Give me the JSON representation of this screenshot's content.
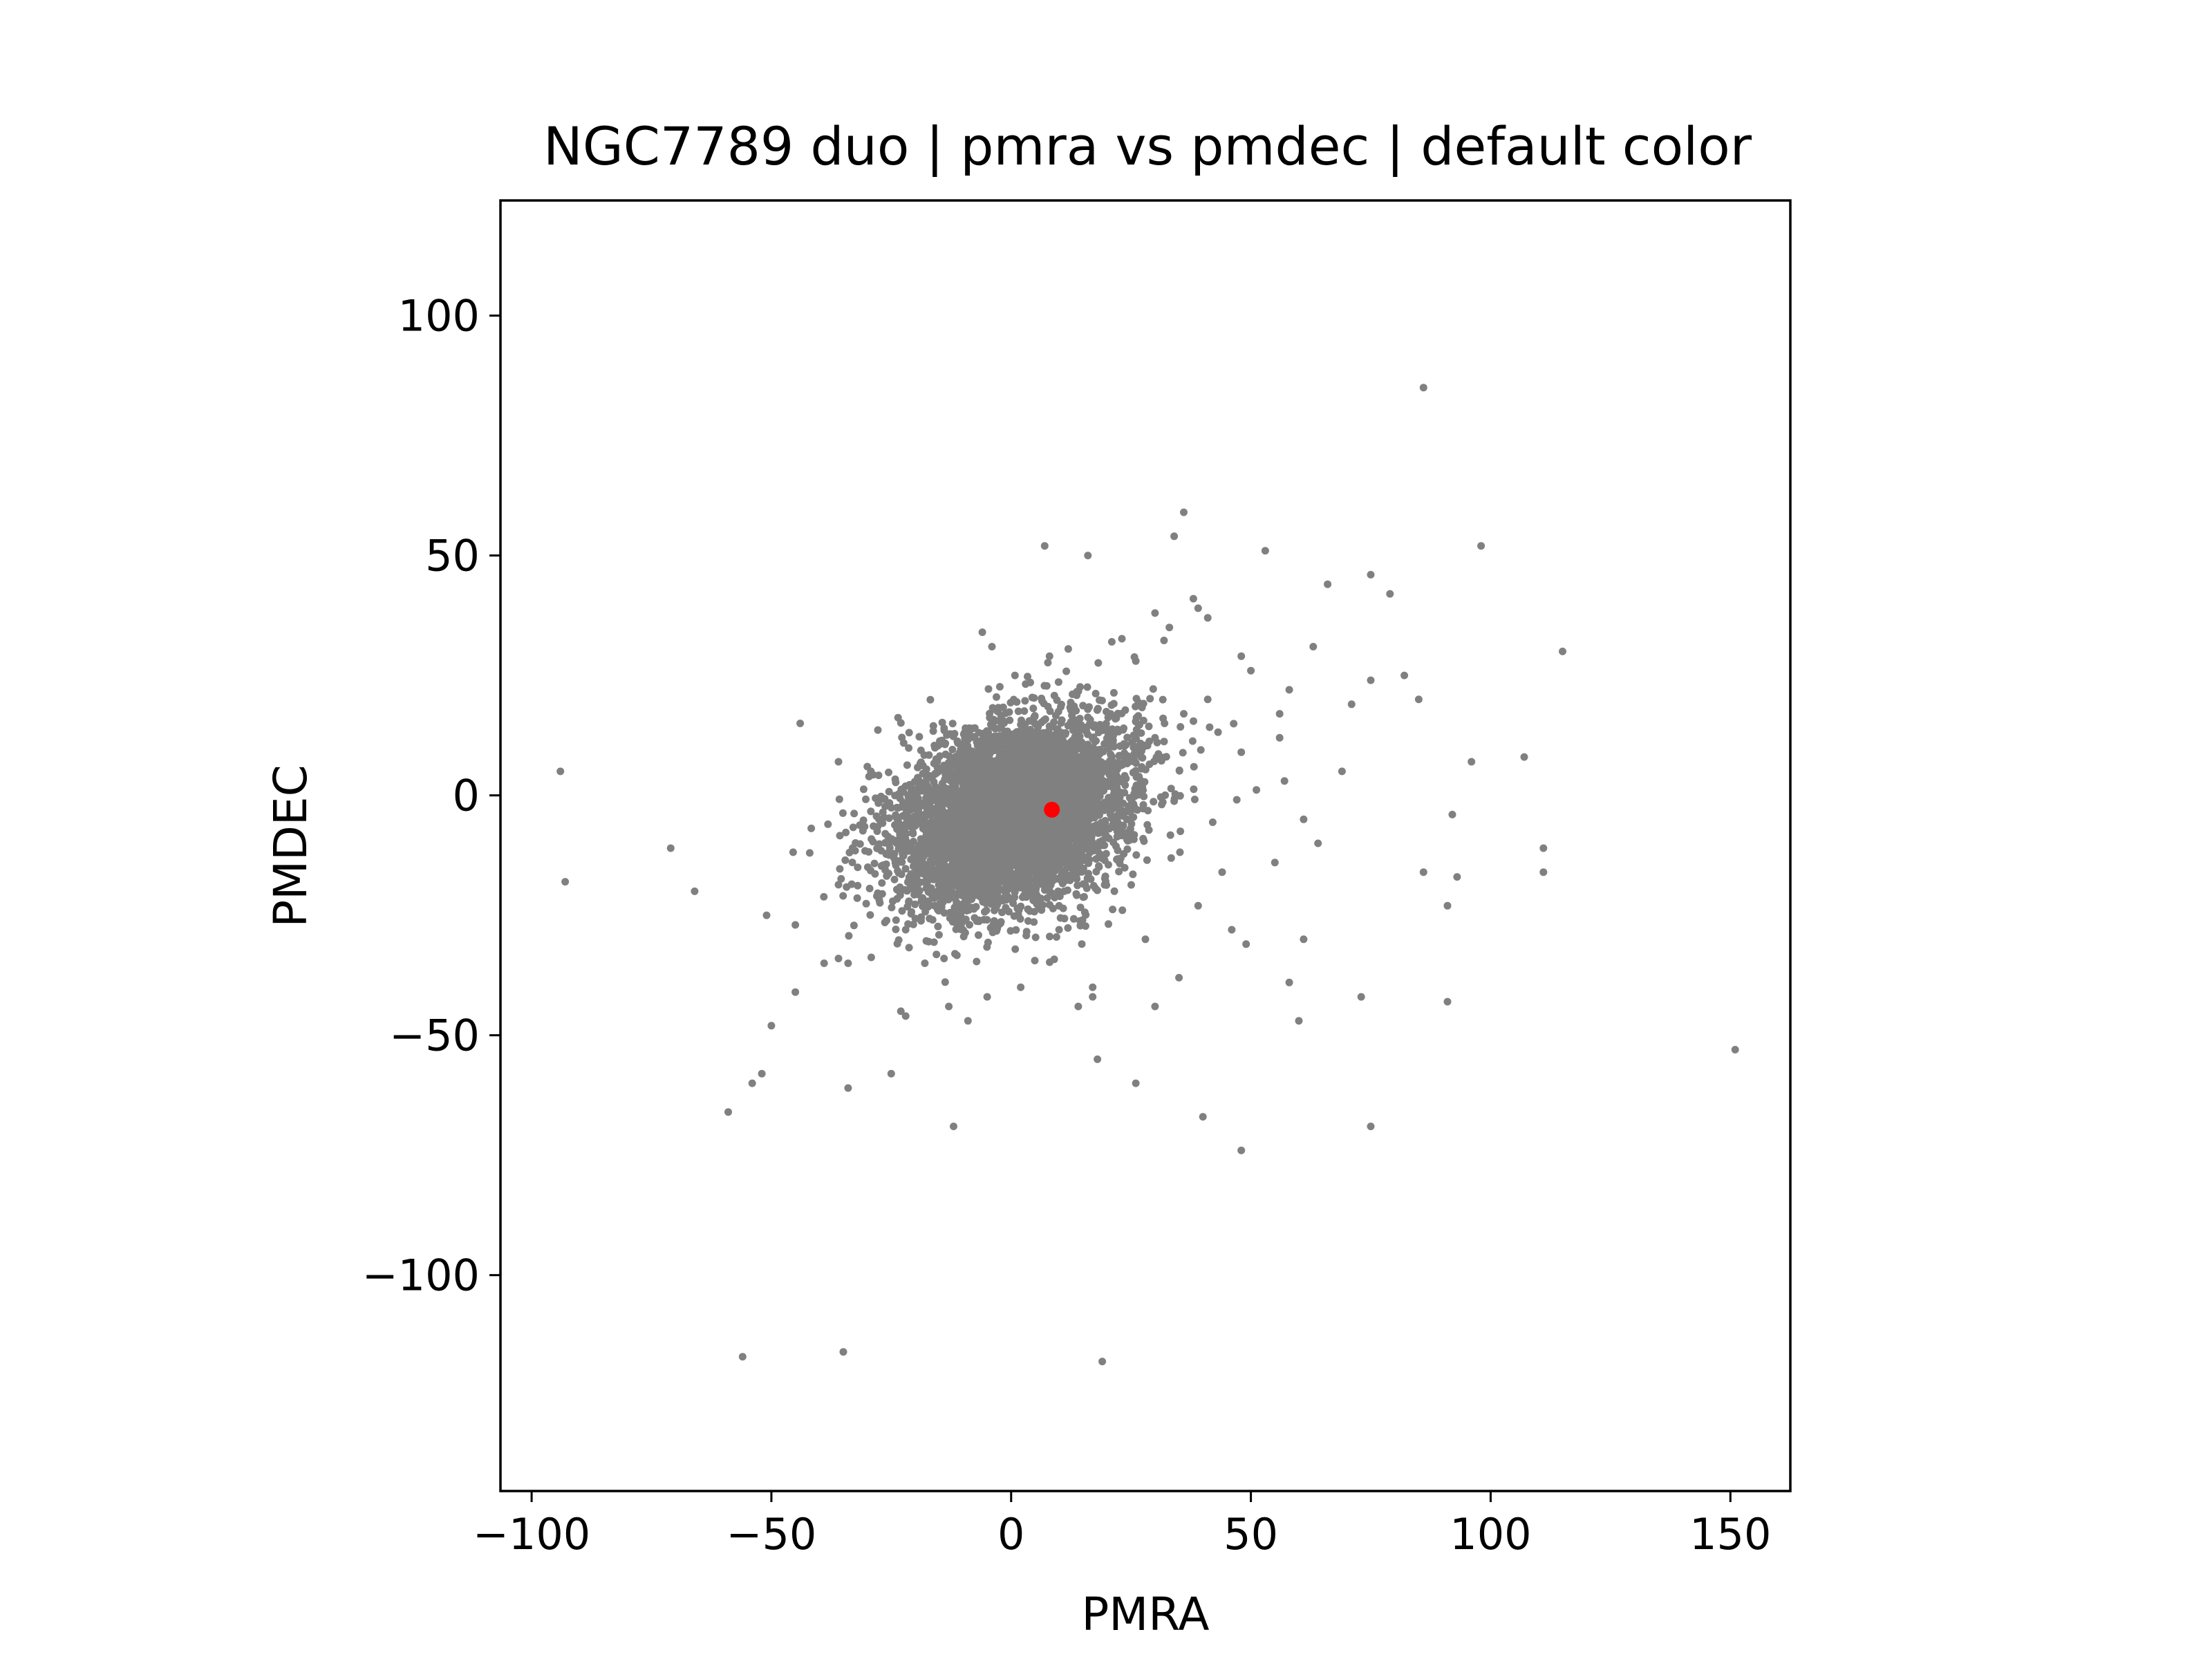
{
  "chart_data": {
    "type": "scatter",
    "title": "NGC7789 duo | pmra vs pmdec | default color",
    "xlabel": "PMRA",
    "ylabel": "PMDEC",
    "xlim": [
      -106.5,
      162.5
    ],
    "ylim": [
      -145,
      124
    ],
    "xticks": [
      -100,
      -50,
      0,
      50,
      100,
      150
    ],
    "yticks": [
      -100,
      -50,
      0,
      50,
      100
    ],
    "xtick_labels": [
      "−100",
      "−50",
      "0",
      "50",
      "100",
      "150"
    ],
    "ytick_labels": [
      "−100",
      "−50",
      "0",
      "50",
      "100"
    ],
    "grid": false,
    "legend": "none",
    "series": [
      {
        "color": "#808080",
        "marker_size": "small",
        "core": {
          "center_x": 0.8,
          "center_y": -4,
          "spread_x": 12.5,
          "spread_y": 9.5,
          "count": 5000
        },
        "points_x": [
          -94,
          -93,
          -71,
          -66,
          -59,
          -56,
          -54,
          -52,
          -50,
          -51,
          -45,
          -44,
          -45,
          -39,
          -35,
          -34,
          -34,
          -36,
          -32,
          -30,
          -25,
          -23,
          -22,
          -13,
          -12,
          -6,
          -4,
          8,
          7,
          16,
          19,
          18,
          26,
          30,
          30,
          33,
          36,
          34,
          38,
          39,
          41,
          40,
          48,
          49,
          53,
          60,
          61,
          66,
          73,
          75,
          75,
          79,
          86,
          85,
          86,
          91,
          91,
          93,
          96,
          98,
          107,
          111,
          111,
          115,
          151,
          92,
          82,
          75,
          71,
          69,
          63,
          58,
          56,
          58,
          55,
          61,
          64,
          56,
          48,
          50,
          57,
          46,
          44,
          39,
          36,
          32,
          30,
          28,
          17,
          17,
          14,
          10,
          2,
          -5,
          -9,
          -14,
          -18,
          -22,
          -24,
          -28,
          -36,
          -42,
          21,
          26,
          35,
          41,
          48
        ],
        "points_y": [
          5,
          -18,
          -11,
          -20,
          -66,
          -117,
          -60,
          -58,
          -48,
          -25,
          -41,
          15,
          -27,
          -35,
          -116,
          -61,
          -35,
          7,
          -15,
          6,
          -58,
          -45,
          -46,
          -44,
          -69,
          34,
          31,
          29,
          52,
          50,
          -118,
          -55,
          -60,
          -44,
          38,
          35,
          59,
          54,
          41,
          39,
          37,
          -67,
          -74,
          -31,
          51,
          -47,
          -30,
          44,
          -42,
          46,
          -69,
          42,
          85,
          20,
          -16,
          -23,
          -43,
          -17,
          7,
          52,
          8,
          -16,
          -11,
          30,
          -53,
          -4,
          25,
          24,
          19,
          5,
          31,
          22,
          12,
          -39,
          -14,
          -5,
          -10,
          17,
          29,
          26,
          3,
          -28,
          -16,
          -23,
          17,
          15,
          12,
          -30,
          -40,
          -42,
          -44,
          -28,
          -40,
          -42,
          -47,
          -34,
          -35,
          -28,
          -26,
          -21,
          -34,
          -12,
          32,
          28,
          -38,
          20,
          9
        ]
      },
      {
        "color": "#ff0000",
        "marker_size": "large",
        "points_x": [
          8.5
        ],
        "points_y": [
          -3
        ]
      }
    ]
  }
}
